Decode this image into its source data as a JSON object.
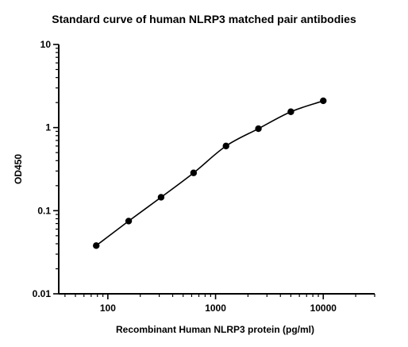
{
  "chart_data": {
    "type": "scatter",
    "title": "Standard curve of human NLRP3 matched pair antibodies",
    "xlabel": "Recombinant Human NLRP3 protein (pg/ml)",
    "ylabel": "OD450",
    "x_scale": "log",
    "y_scale": "log",
    "xlim": [
      35,
      30000
    ],
    "ylim": [
      0.01,
      10
    ],
    "x_ticks": [
      {
        "value": 100,
        "label": "100"
      },
      {
        "value": 1000,
        "label": "1000"
      },
      {
        "value": 10000,
        "label": "10000"
      }
    ],
    "y_ticks": [
      {
        "value": 0.01,
        "label": "0.01"
      },
      {
        "value": 0.1,
        "label": "0.1"
      },
      {
        "value": 1,
        "label": "1"
      },
      {
        "value": 10,
        "label": "10"
      }
    ],
    "grid": false,
    "legend": false,
    "fit_curve": true,
    "series": [
      {
        "x": [
          78,
          156,
          312,
          625,
          1250,
          2500,
          5000,
          10000
        ],
        "y": [
          0.038,
          0.075,
          0.145,
          0.285,
          0.6,
          0.97,
          1.55,
          2.1
        ]
      }
    ],
    "colors": {
      "points": "#000000",
      "curve": "#000000",
      "axes": "#000000"
    }
  }
}
